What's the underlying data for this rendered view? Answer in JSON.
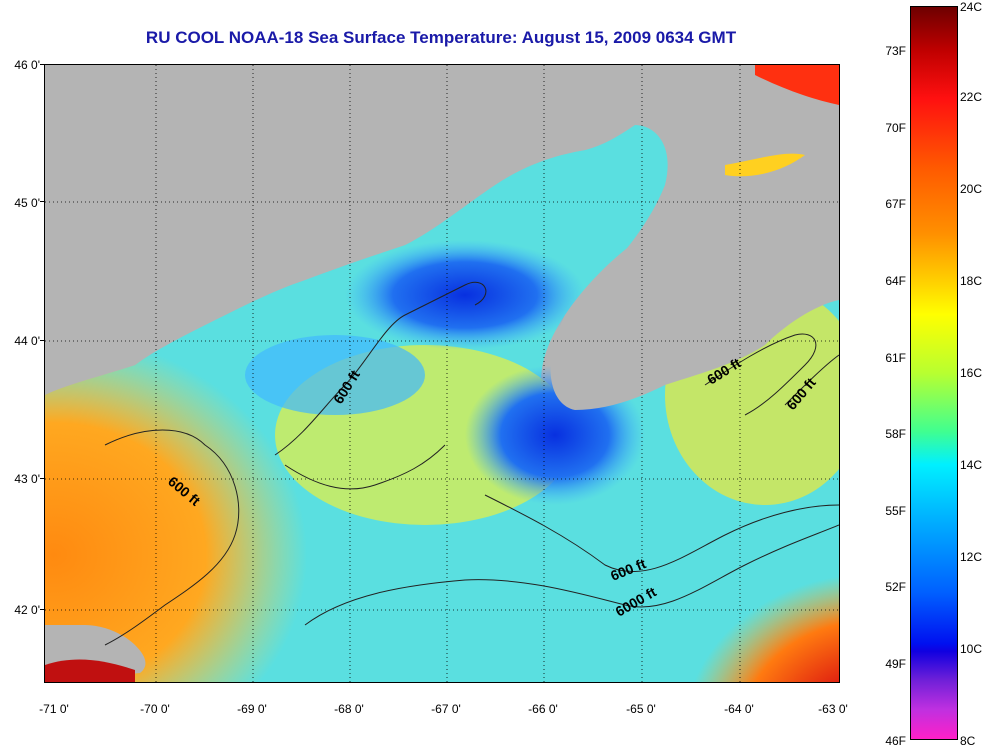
{
  "title": "RU COOL  NOAA-18  Sea Surface Temperature:  August 15, 2009 0634 GMT",
  "latitude_labels": [
    "46 0'",
    "45 0'",
    "44 0'",
    "43 0'",
    "42 0'"
  ],
  "longitude_labels": [
    "-71 0'",
    "-70 0'",
    "-69 0'",
    "-68 0'",
    "-67 0'",
    "-66 0'",
    "-65 0'",
    "-64 0'",
    "-63 0'"
  ],
  "contour_labels": [
    "600 ft",
    "600 ft",
    "600 ft",
    "600 ft",
    "600 ft",
    "6000 ft"
  ],
  "colorbar": {
    "celsius_labels": [
      "24C",
      "22C",
      "20C",
      "18C",
      "16C",
      "14C",
      "12C",
      "10C",
      "8C"
    ],
    "fahrenheit_labels": [
      "73F",
      "70F",
      "67F",
      "64F",
      "61F",
      "58F",
      "55F",
      "52F",
      "49F",
      "46F"
    ]
  },
  "colors": {
    "land": "#b4b4b4",
    "title": "#1a1aa8",
    "warm": "#e8601a",
    "cool": "#1e6ef0"
  }
}
